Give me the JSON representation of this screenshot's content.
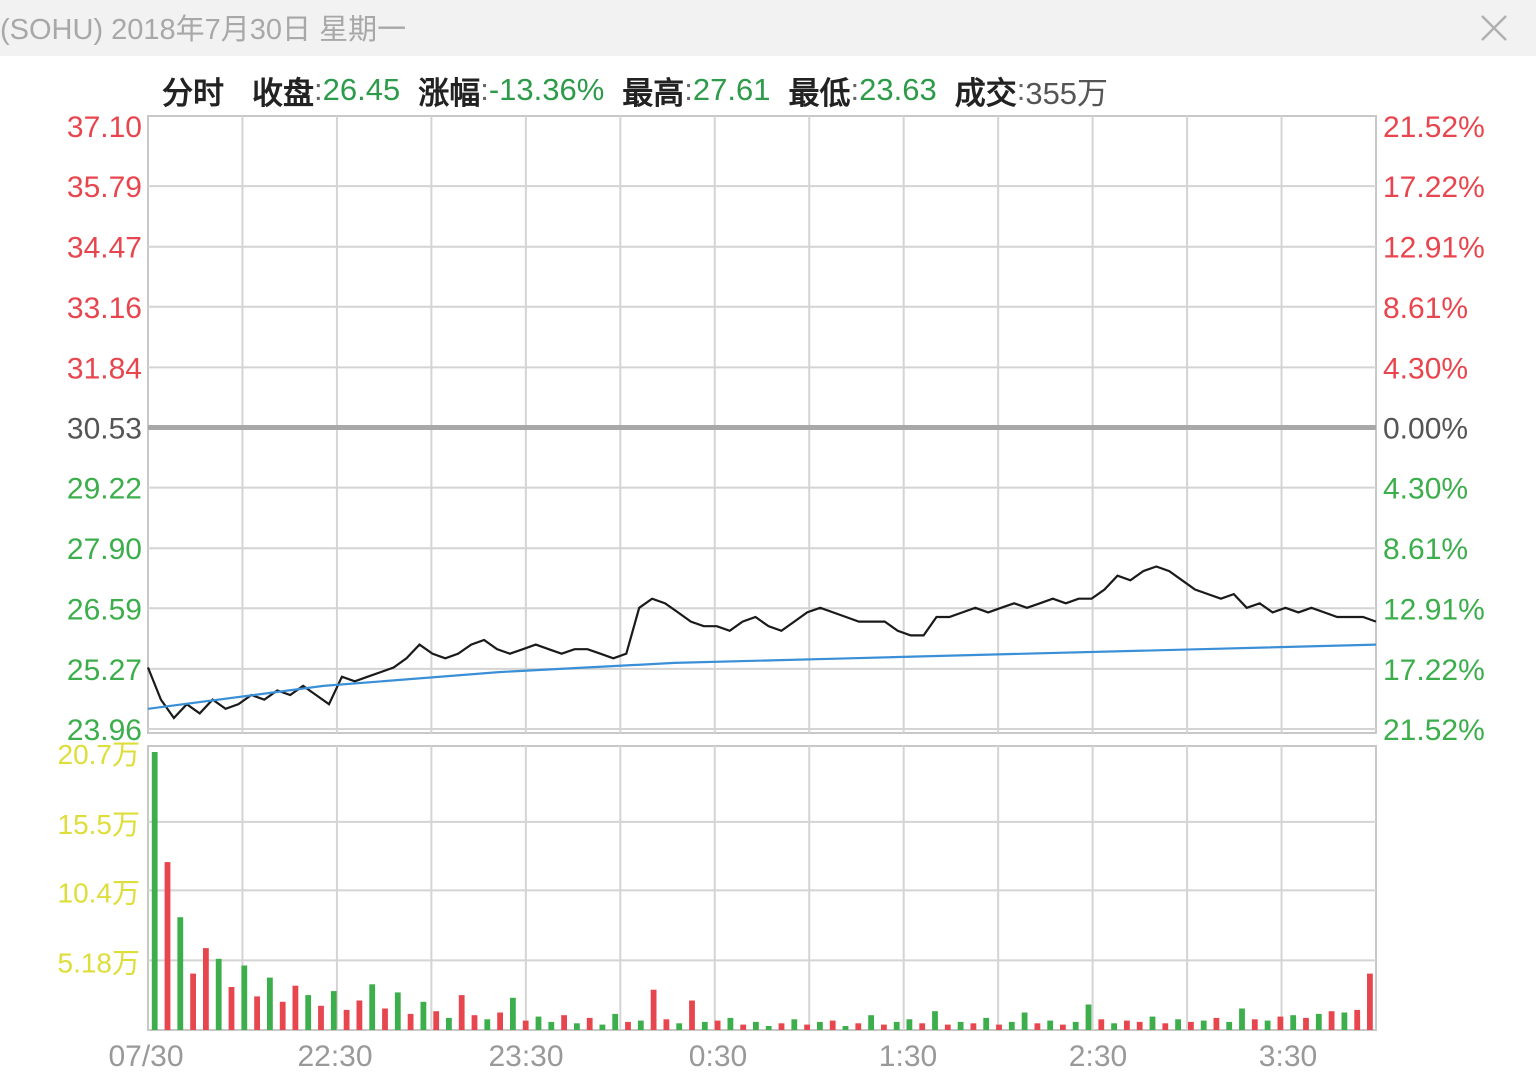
{
  "window": {
    "title": "(SOHU) 2018年7月30日 星期一"
  },
  "summary": {
    "tab_label": "分时",
    "close_label": "收盘",
    "close_value": "26.45",
    "change_label": "涨幅",
    "change_value": "-13.36%",
    "high_label": "最高",
    "high_value": "27.61",
    "low_label": "最低",
    "low_value": "23.63",
    "volume_label": "成交",
    "volume_value": "355万",
    "sep": ":"
  },
  "colors": {
    "up": "#e8464e",
    "down": "#3cae4c",
    "neutral": "#555555",
    "price_line": "#1a1a1a",
    "avg_line": "#3a8fd6",
    "volume_axis": "#dede3a",
    "grid": "#d4d4d4"
  },
  "chart_data": [
    {
      "type": "line",
      "name": "price",
      "x_ticks": [
        "07/30",
        "22:30",
        "23:30",
        "0:30",
        "1:30",
        "2:30",
        "3:30"
      ],
      "y_ticks_left": [
        "37.10",
        "35.79",
        "34.47",
        "33.16",
        "31.84",
        "30.53",
        "29.22",
        "27.90",
        "26.59",
        "25.27",
        "23.96"
      ],
      "y_ticks_right": [
        "21.52%",
        "17.22%",
        "12.91%",
        "8.61%",
        "4.30%",
        "0.00%",
        "4.30%",
        "8.61%",
        "12.91%",
        "17.22%",
        "21.52%"
      ],
      "reference_price": 30.53,
      "ylim": [
        23.96,
        37.1
      ],
      "series": [
        {
          "values": [
            25.3,
            24.6,
            24.2,
            24.5,
            24.3,
            24.6,
            24.4,
            24.5,
            24.7,
            24.6,
            24.8,
            24.7,
            24.9,
            24.7,
            24.5,
            25.1,
            25.0,
            25.1,
            25.2,
            25.3,
            25.5,
            25.8,
            25.6,
            25.5,
            25.6,
            25.8,
            25.9,
            25.7,
            25.6,
            25.7,
            25.8,
            25.7,
            25.6,
            25.7,
            25.7,
            25.6,
            25.5,
            25.6,
            26.6,
            26.8,
            26.7,
            26.5,
            26.3,
            26.2,
            26.2,
            26.1,
            26.3,
            26.4,
            26.2,
            26.1,
            26.3,
            26.5,
            26.6,
            26.5,
            26.4,
            26.3,
            26.3,
            26.3,
            26.1,
            26.0,
            26.0,
            26.4,
            26.4,
            26.5,
            26.6,
            26.5,
            26.6,
            26.7,
            26.6,
            26.7,
            26.8,
            26.7,
            26.8,
            26.8,
            27.0,
            27.3,
            27.2,
            27.4,
            27.5,
            27.4,
            27.2,
            27.0,
            26.9,
            26.8,
            26.9,
            26.6,
            26.7,
            26.5,
            26.6,
            26.5,
            26.6,
            26.5,
            26.4,
            26.4,
            26.4,
            26.3
          ]
        },
        {
          "name": "average",
          "values": [
            24.4,
            24.9,
            25.2,
            25.4,
            25.5,
            25.6,
            25.7,
            25.8
          ]
        }
      ]
    },
    {
      "type": "bar",
      "name": "volume",
      "y_ticks": [
        "20.7万",
        "15.5万",
        "10.4万",
        "5.18万"
      ],
      "y_tick_values": [
        20.7,
        15.5,
        10.4,
        5.18
      ],
      "ylim": [
        0,
        20.7
      ],
      "values": [
        20.7,
        12.5,
        8.4,
        4.2,
        6.1,
        5.3,
        3.2,
        4.8,
        2.5,
        3.9,
        2.1,
        3.3,
        2.6,
        1.8,
        2.9,
        1.5,
        2.2,
        3.4,
        1.6,
        2.8,
        1.2,
        2.1,
        1.4,
        0.9,
        2.6,
        1.1,
        0.8,
        1.3,
        2.4,
        0.7,
        1.0,
        0.6,
        1.1,
        0.5,
        0.9,
        0.4,
        1.2,
        0.6,
        0.7,
        3.0,
        0.8,
        0.5,
        2.2,
        0.6,
        0.7,
        0.9,
        0.4,
        0.6,
        0.3,
        0.5,
        0.8,
        0.4,
        0.6,
        0.7,
        0.3,
        0.5,
        1.1,
        0.4,
        0.6,
        0.8,
        0.5,
        1.4,
        0.4,
        0.6,
        0.5,
        0.9,
        0.4,
        0.6,
        1.3,
        0.5,
        0.7,
        0.4,
        0.6,
        1.9,
        0.8,
        0.5,
        0.7,
        0.6,
        1.0,
        0.5,
        0.8,
        0.6,
        0.7,
        0.9,
        0.6,
        1.6,
        0.8,
        0.7,
        1.0,
        1.1,
        0.9,
        1.2,
        1.4,
        1.3,
        1.5,
        4.2
      ],
      "up_flags": [
        0,
        1,
        0,
        1,
        1,
        0,
        1,
        0,
        1,
        0,
        1,
        1,
        0,
        1,
        0,
        1,
        1,
        0,
        1,
        0,
        1,
        0,
        1,
        0,
        1,
        1,
        0,
        1,
        0,
        1,
        0,
        0,
        1,
        0,
        1,
        0,
        0,
        1,
        0,
        1,
        1,
        0,
        1,
        0,
        1,
        0,
        1,
        0,
        0,
        1,
        0,
        1,
        0,
        1,
        0,
        1,
        0,
        1,
        0,
        0,
        1,
        0,
        1,
        0,
        1,
        0,
        1,
        0,
        0,
        1,
        0,
        1,
        0,
        0,
        1,
        0,
        1,
        1,
        0,
        1,
        0,
        1,
        0,
        1,
        0,
        0,
        1,
        0,
        1,
        0,
        1,
        0,
        1,
        0,
        1,
        1
      ]
    }
  ]
}
